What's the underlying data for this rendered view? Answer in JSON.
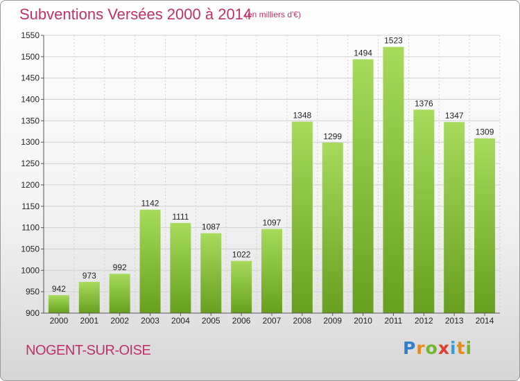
{
  "chart_data": {
    "type": "bar",
    "title": "Subventions Versées 2000 à 2014",
    "subtitle": "(en milliers d'€)",
    "categories": [
      "2000",
      "2001",
      "2002",
      "2003",
      "2004",
      "2005",
      "2006",
      "2007",
      "2008",
      "2009",
      "2010",
      "2011",
      "2012",
      "2013",
      "2014"
    ],
    "values": [
      942,
      973,
      992,
      1142,
      1111,
      1087,
      1022,
      1097,
      1348,
      1299,
      1494,
      1523,
      1376,
      1347,
      1309
    ],
    "ylim": [
      900,
      1550
    ],
    "yticks": [
      900,
      950,
      1000,
      1050,
      1100,
      1150,
      1200,
      1250,
      1300,
      1350,
      1400,
      1450,
      1500,
      1550
    ],
    "grid": true,
    "xlabel": "",
    "ylabel": "",
    "colors": {
      "bar_light": "#a6db5c",
      "bar_dark": "#67a01e",
      "grid": "#cfcfcf",
      "axis": "#555555",
      "title": "#c2306a"
    }
  },
  "location": "NOGENT-SUR-OISE",
  "brand": {
    "letters": [
      "P",
      "r",
      "o",
      "x",
      "i",
      "t",
      "i"
    ],
    "colors": [
      "#2f7fd0",
      "#e8891a",
      "#74b62c",
      "#e43b2c",
      "#2f9fe0",
      "#e8891a",
      "#74b62c"
    ]
  }
}
